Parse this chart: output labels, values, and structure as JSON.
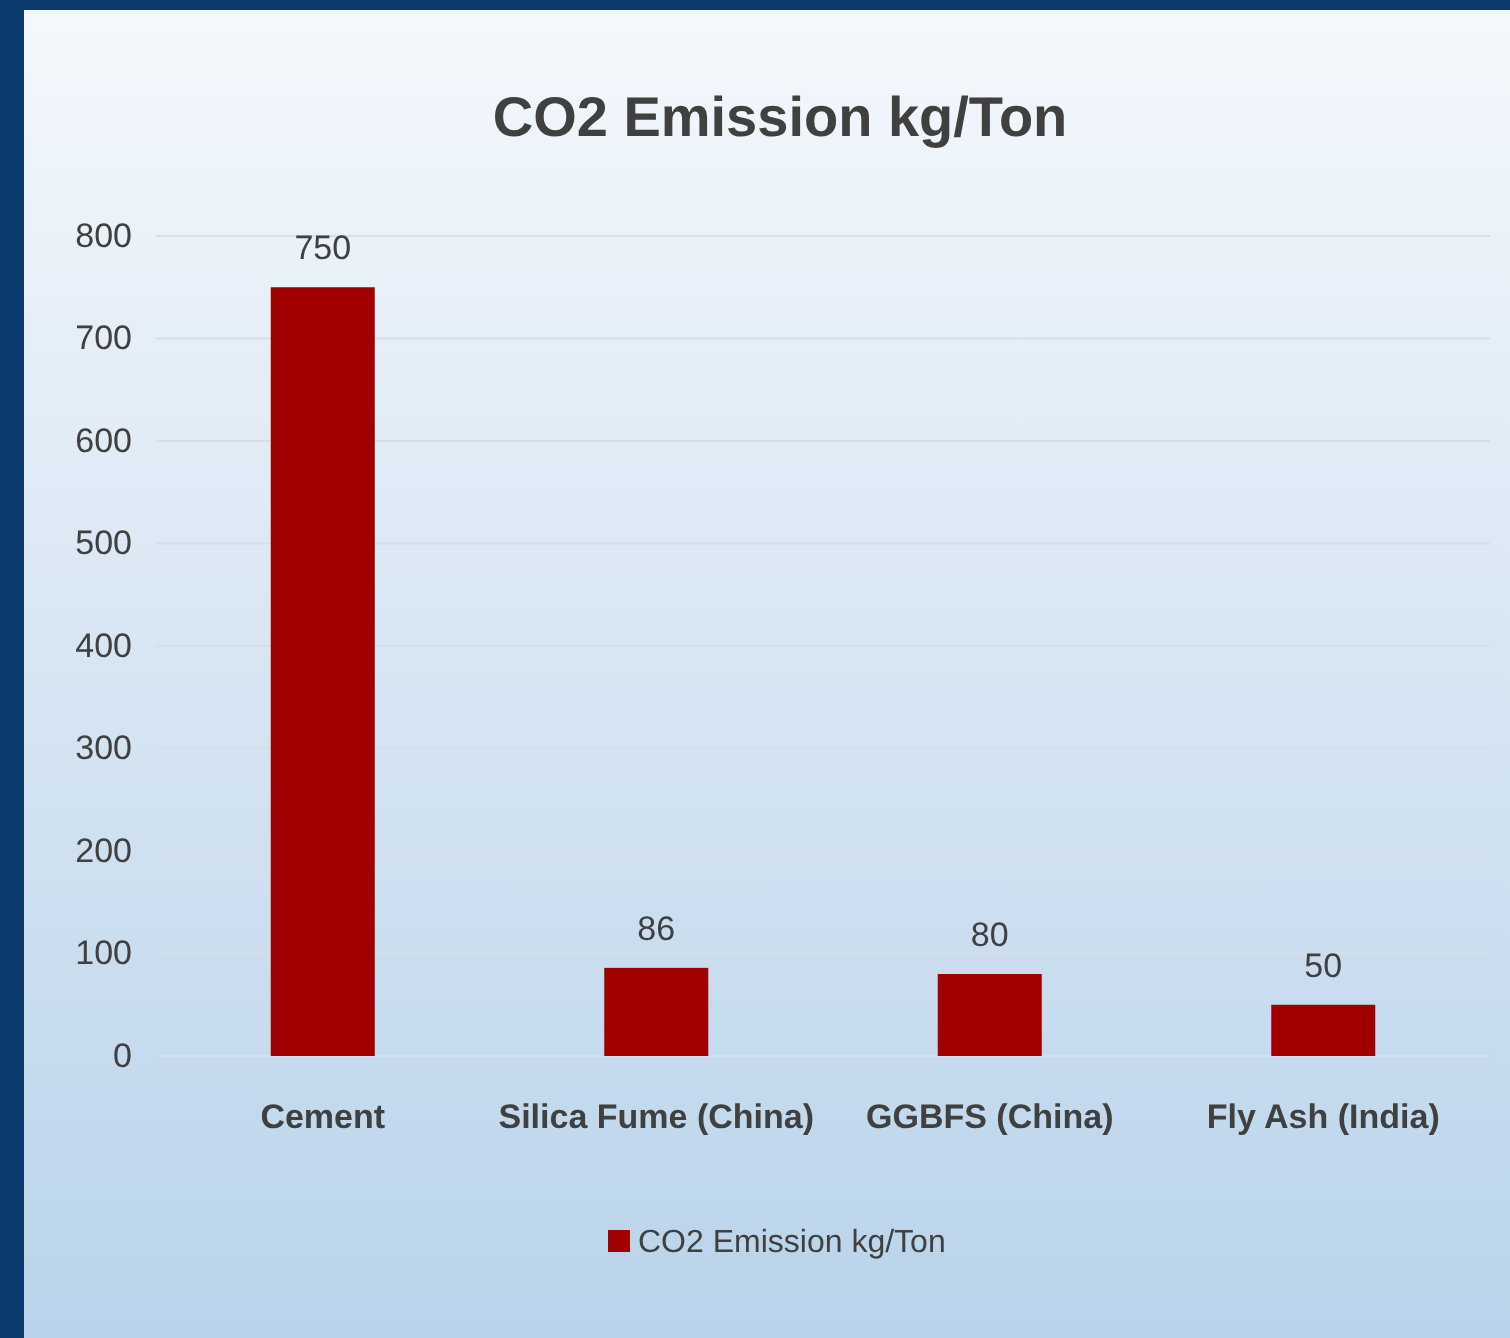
{
  "chart_data": {
    "type": "bar",
    "title": "CO2 Emission kg/Ton",
    "categories": [
      "Cement",
      "Silica Fume (China)",
      "GGBFS (China)",
      "Fly Ash (India)"
    ],
    "series": [
      {
        "name": "CO2 Emission kg/Ton",
        "color": "#a00000",
        "values": [
          750,
          86,
          80,
          50
        ]
      }
    ],
    "ylim": [
      0,
      800
    ],
    "yticks": [
      0,
      100,
      200,
      300,
      400,
      500,
      600,
      700,
      800
    ],
    "grid": "y",
    "data_labels": true,
    "legend": "bottom"
  }
}
